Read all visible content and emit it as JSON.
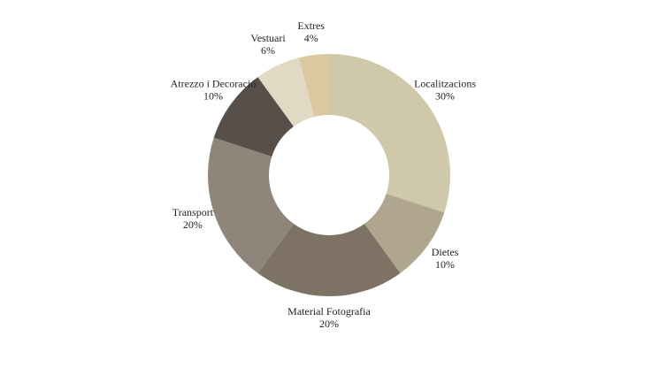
{
  "chart_data": {
    "type": "donut",
    "categories": [
      "Localitzacions",
      "Dietes",
      "Material Fotografia",
      "Transport",
      "Atrezzo i Decoració",
      "Vestuari",
      "Extres"
    ],
    "values": [
      30,
      10,
      20,
      20,
      10,
      6,
      4
    ],
    "value_labels": [
      "30%",
      "10%",
      "20%",
      "20%",
      "10%",
      "6%",
      "4%"
    ],
    "colors": [
      "#cfc8ab",
      "#b0a690",
      "#7d7264",
      "#8f857a",
      "#57504a",
      "#e2d9c5",
      "#dcc8a0"
    ]
  }
}
